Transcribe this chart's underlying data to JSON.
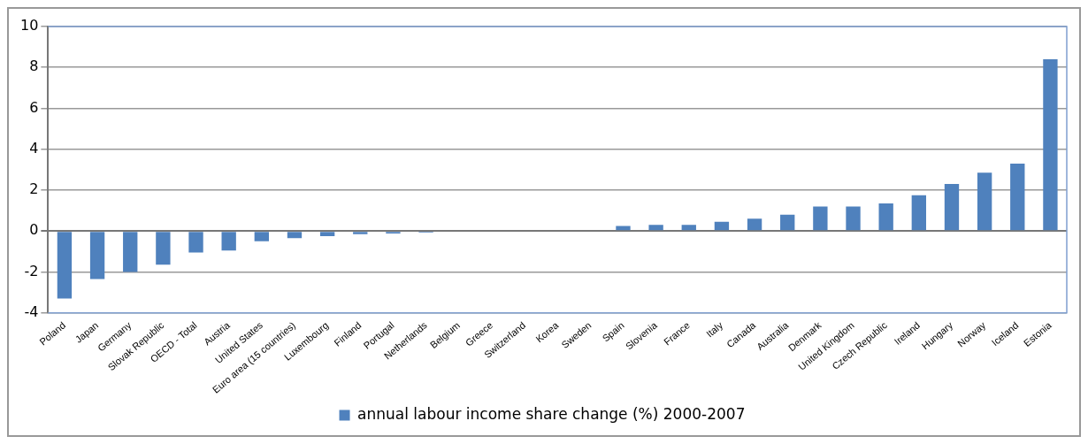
{
  "chart_data": {
    "type": "bar",
    "categories": [
      "Poland",
      "Japan",
      "Germany",
      "Slovak Republic",
      "OECD - Total",
      "Austria",
      "United States",
      "Euro area (15 countries)",
      "Luxembourg",
      "Finland",
      "Portugal",
      "Netherlands",
      "Belgium",
      "Greece",
      "Switzerland",
      "Korea",
      "Sweden",
      "Spain",
      "Slovenia",
      "France",
      "Italy",
      "Canada",
      "Australia",
      "Denmark",
      "United Kingdom",
      "Czech Republic",
      "Ireland",
      "Hungary",
      "Norway",
      "Iceland",
      "Estonia"
    ],
    "series": [
      {
        "name": "annual labour income share change (%) 2000-2007",
        "color": "#4f81bd",
        "values": [
          -3.3,
          -2.35,
          -2.0,
          -1.65,
          -1.05,
          -0.95,
          -0.5,
          -0.35,
          -0.25,
          -0.15,
          -0.12,
          -0.08,
          0,
          0,
          0,
          0,
          0,
          0.25,
          0.3,
          0.3,
          0.45,
          0.6,
          0.8,
          1.2,
          1.2,
          1.35,
          1.75,
          2.3,
          2.85,
          3.3,
          8.4
        ]
      }
    ],
    "ylim": [
      -4,
      10
    ],
    "yticks": [
      -4,
      -2,
      0,
      2,
      4,
      6,
      8,
      10
    ],
    "grid": "y",
    "legend": "bottom"
  }
}
